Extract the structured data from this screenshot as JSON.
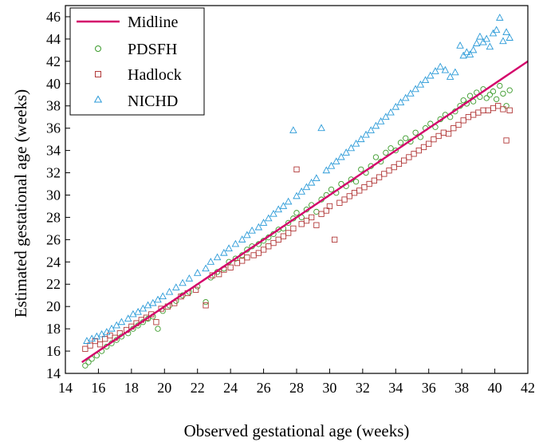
{
  "chart_data": {
    "type": "scatter",
    "title": "",
    "xlabel": "Observed gestational age (weeks)",
    "ylabel": "Estimated gestational age (weeks)",
    "xlim": [
      14,
      42
    ],
    "ylim": [
      14,
      47
    ],
    "xticks": [
      14,
      16,
      18,
      20,
      22,
      24,
      26,
      28,
      30,
      32,
      34,
      36,
      38,
      40,
      42
    ],
    "yticks": [
      14,
      16,
      18,
      20,
      22,
      24,
      26,
      28,
      30,
      32,
      34,
      36,
      38,
      40,
      42,
      44,
      46
    ],
    "grid": false,
    "legend_position": "top-left",
    "midline": {
      "name": "Midline",
      "color": "#d4006a",
      "x": [
        15,
        42
      ],
      "y": [
        15,
        42
      ]
    },
    "series": [
      {
        "name": "PDSFH",
        "marker": "circle",
        "color": "#3a9a2a",
        "points": [
          [
            15.2,
            14.7
          ],
          [
            15.4,
            15.0
          ],
          [
            15.6,
            15.3
          ],
          [
            15.9,
            15.6
          ],
          [
            16.2,
            16.0
          ],
          [
            16.5,
            16.4
          ],
          [
            16.8,
            16.7
          ],
          [
            17.1,
            17.0
          ],
          [
            17.4,
            17.3
          ],
          [
            17.8,
            17.6
          ],
          [
            18.1,
            18.0
          ],
          [
            18.4,
            18.3
          ],
          [
            18.7,
            18.6
          ],
          [
            19.0,
            18.9
          ],
          [
            19.3,
            19.1
          ],
          [
            19.6,
            18.0
          ],
          [
            19.9,
            19.6
          ],
          [
            20.3,
            20.1
          ],
          [
            20.7,
            20.5
          ],
          [
            21.1,
            21.0
          ],
          [
            21.5,
            21.3
          ],
          [
            22.0,
            21.8
          ],
          [
            22.5,
            20.4
          ],
          [
            22.8,
            22.6
          ],
          [
            23.2,
            23.1
          ],
          [
            23.6,
            23.4
          ],
          [
            23.9,
            24.0
          ],
          [
            24.3,
            24.3
          ],
          [
            24.7,
            24.6
          ],
          [
            25.0,
            25.1
          ],
          [
            25.3,
            25.4
          ],
          [
            25.7,
            25.6
          ],
          [
            26.0,
            25.9
          ],
          [
            26.3,
            26.2
          ],
          [
            26.6,
            26.5
          ],
          [
            26.9,
            26.9
          ],
          [
            27.2,
            27.0
          ],
          [
            27.5,
            27.5
          ],
          [
            27.8,
            27.9
          ],
          [
            28.0,
            28.4
          ],
          [
            28.3,
            28.0
          ],
          [
            28.6,
            28.7
          ],
          [
            28.9,
            29.1
          ],
          [
            29.2,
            28.5
          ],
          [
            29.5,
            29.6
          ],
          [
            29.8,
            30.0
          ],
          [
            30.1,
            30.5
          ],
          [
            30.4,
            30.2
          ],
          [
            30.7,
            31.0
          ],
          [
            31.0,
            30.8
          ],
          [
            31.3,
            31.4
          ],
          [
            31.6,
            31.2
          ],
          [
            31.9,
            32.3
          ],
          [
            32.2,
            32.0
          ],
          [
            32.5,
            32.6
          ],
          [
            32.8,
            33.4
          ],
          [
            33.1,
            33.0
          ],
          [
            33.4,
            33.8
          ],
          [
            33.7,
            34.2
          ],
          [
            34.0,
            34.0
          ],
          [
            34.3,
            34.7
          ],
          [
            34.6,
            35.1
          ],
          [
            34.9,
            34.8
          ],
          [
            35.2,
            35.6
          ],
          [
            35.5,
            35.2
          ],
          [
            35.8,
            36.0
          ],
          [
            36.1,
            36.4
          ],
          [
            36.4,
            36.1
          ],
          [
            36.7,
            36.8
          ],
          [
            37.0,
            37.2
          ],
          [
            37.3,
            37.0
          ],
          [
            37.6,
            37.5
          ],
          [
            37.9,
            38.0
          ],
          [
            38.1,
            38.5
          ],
          [
            38.3,
            38.2
          ],
          [
            38.5,
            38.9
          ],
          [
            38.7,
            38.4
          ],
          [
            38.9,
            39.2
          ],
          [
            39.1,
            38.8
          ],
          [
            39.3,
            39.5
          ],
          [
            39.5,
            38.7
          ],
          [
            39.7,
            39.0
          ],
          [
            39.9,
            39.3
          ],
          [
            40.1,
            38.6
          ],
          [
            40.3,
            39.8
          ],
          [
            40.5,
            39.1
          ],
          [
            40.7,
            38.0
          ],
          [
            40.9,
            39.4
          ]
        ]
      },
      {
        "name": "Hadlock",
        "marker": "square",
        "color": "#b23a3a",
        "points": [
          [
            15.2,
            16.2
          ],
          [
            15.5,
            16.5
          ],
          [
            15.8,
            16.9
          ],
          [
            16.1,
            16.6
          ],
          [
            16.4,
            17.1
          ],
          [
            16.7,
            17.4
          ],
          [
            17.0,
            17.2
          ],
          [
            17.3,
            17.6
          ],
          [
            17.7,
            17.9
          ],
          [
            18.0,
            18.2
          ],
          [
            18.3,
            18.5
          ],
          [
            18.6,
            18.8
          ],
          [
            18.9,
            19.0
          ],
          [
            19.2,
            19.3
          ],
          [
            19.5,
            18.6
          ],
          [
            19.8,
            19.8
          ],
          [
            20.2,
            20.0
          ],
          [
            20.6,
            20.3
          ],
          [
            21.0,
            20.9
          ],
          [
            21.4,
            21.2
          ],
          [
            21.9,
            21.5
          ],
          [
            22.5,
            20.1
          ],
          [
            22.9,
            22.8
          ],
          [
            23.3,
            22.9
          ],
          [
            23.6,
            23.3
          ],
          [
            24.0,
            23.5
          ],
          [
            24.4,
            23.9
          ],
          [
            24.7,
            24.1
          ],
          [
            25.0,
            24.4
          ],
          [
            25.4,
            24.6
          ],
          [
            25.7,
            24.8
          ],
          [
            26.0,
            25.1
          ],
          [
            26.3,
            25.4
          ],
          [
            26.6,
            25.7
          ],
          [
            26.9,
            26.0
          ],
          [
            27.2,
            26.3
          ],
          [
            27.5,
            26.6
          ],
          [
            27.8,
            27.0
          ],
          [
            28.0,
            32.3
          ],
          [
            28.3,
            27.4
          ],
          [
            28.6,
            27.7
          ],
          [
            28.9,
            28.0
          ],
          [
            29.2,
            27.3
          ],
          [
            29.5,
            28.3
          ],
          [
            29.8,
            28.6
          ],
          [
            30.0,
            29.0
          ],
          [
            30.3,
            26.0
          ],
          [
            30.6,
            29.3
          ],
          [
            30.9,
            29.6
          ],
          [
            31.2,
            29.9
          ],
          [
            31.5,
            30.2
          ],
          [
            31.8,
            30.4
          ],
          [
            32.1,
            30.7
          ],
          [
            32.4,
            31.0
          ],
          [
            32.7,
            31.3
          ],
          [
            33.0,
            31.6
          ],
          [
            33.3,
            31.9
          ],
          [
            33.6,
            32.2
          ],
          [
            33.9,
            32.5
          ],
          [
            34.2,
            32.8
          ],
          [
            34.5,
            33.1
          ],
          [
            34.8,
            33.4
          ],
          [
            35.1,
            33.7
          ],
          [
            35.4,
            34.0
          ],
          [
            35.7,
            34.3
          ],
          [
            36.0,
            34.6
          ],
          [
            36.3,
            35.0
          ],
          [
            36.6,
            35.3
          ],
          [
            36.9,
            35.6
          ],
          [
            37.2,
            35.5
          ],
          [
            37.5,
            36.0
          ],
          [
            37.8,
            36.3
          ],
          [
            38.1,
            36.7
          ],
          [
            38.4,
            37.0
          ],
          [
            38.7,
            37.2
          ],
          [
            39.0,
            37.4
          ],
          [
            39.3,
            37.6
          ],
          [
            39.6,
            37.6
          ],
          [
            39.9,
            37.8
          ],
          [
            40.2,
            38.0
          ],
          [
            40.5,
            37.7
          ],
          [
            40.7,
            34.9
          ],
          [
            40.9,
            37.6
          ]
        ]
      },
      {
        "name": "NICHD",
        "marker": "triangle",
        "color": "#2a9ad8",
        "points": [
          [
            15.3,
            16.9
          ],
          [
            15.6,
            17.1
          ],
          [
            15.9,
            17.3
          ],
          [
            16.2,
            17.5
          ],
          [
            16.5,
            17.7
          ],
          [
            16.8,
            18.0
          ],
          [
            17.1,
            18.3
          ],
          [
            17.4,
            18.6
          ],
          [
            17.8,
            18.9
          ],
          [
            18.1,
            19.3
          ],
          [
            18.4,
            19.5
          ],
          [
            18.7,
            19.8
          ],
          [
            19.0,
            20.1
          ],
          [
            19.3,
            20.3
          ],
          [
            19.6,
            20.6
          ],
          [
            19.9,
            20.9
          ],
          [
            20.3,
            21.3
          ],
          [
            20.7,
            21.7
          ],
          [
            21.1,
            22.1
          ],
          [
            21.5,
            22.5
          ],
          [
            22.0,
            23.0
          ],
          [
            22.5,
            23.4
          ],
          [
            22.8,
            24.0
          ],
          [
            23.2,
            24.4
          ],
          [
            23.6,
            24.8
          ],
          [
            23.9,
            25.2
          ],
          [
            24.3,
            25.6
          ],
          [
            24.7,
            26.0
          ],
          [
            25.0,
            26.4
          ],
          [
            25.3,
            26.8
          ],
          [
            25.7,
            27.1
          ],
          [
            26.0,
            27.5
          ],
          [
            26.3,
            27.9
          ],
          [
            26.6,
            28.3
          ],
          [
            26.9,
            28.7
          ],
          [
            27.2,
            29.0
          ],
          [
            27.5,
            29.4
          ],
          [
            27.8,
            35.8
          ],
          [
            28.0,
            29.9
          ],
          [
            28.3,
            30.3
          ],
          [
            28.6,
            30.7
          ],
          [
            28.9,
            31.1
          ],
          [
            29.2,
            31.5
          ],
          [
            29.5,
            36.0
          ],
          [
            29.8,
            32.2
          ],
          [
            30.1,
            32.6
          ],
          [
            30.4,
            33.0
          ],
          [
            30.7,
            33.4
          ],
          [
            31.0,
            33.8
          ],
          [
            31.3,
            34.2
          ],
          [
            31.6,
            34.6
          ],
          [
            31.9,
            35.0
          ],
          [
            32.2,
            35.4
          ],
          [
            32.5,
            35.8
          ],
          [
            32.8,
            36.2
          ],
          [
            33.1,
            36.6
          ],
          [
            33.4,
            37.0
          ],
          [
            33.7,
            37.4
          ],
          [
            34.0,
            37.9
          ],
          [
            34.3,
            38.3
          ],
          [
            34.6,
            38.7
          ],
          [
            34.9,
            39.1
          ],
          [
            35.2,
            39.5
          ],
          [
            35.5,
            39.9
          ],
          [
            35.8,
            40.3
          ],
          [
            36.1,
            40.7
          ],
          [
            36.4,
            41.1
          ],
          [
            36.7,
            41.5
          ],
          [
            37.0,
            41.2
          ],
          [
            37.3,
            40.6
          ],
          [
            37.6,
            41.0
          ],
          [
            37.9,
            43.4
          ],
          [
            38.1,
            42.5
          ],
          [
            38.3,
            42.8
          ],
          [
            38.5,
            42.6
          ],
          [
            38.7,
            43.0
          ],
          [
            38.9,
            43.6
          ],
          [
            39.1,
            44.2
          ],
          [
            39.3,
            43.7
          ],
          [
            39.5,
            44.0
          ],
          [
            39.7,
            43.3
          ],
          [
            39.9,
            44.5
          ],
          [
            40.1,
            44.8
          ],
          [
            40.3,
            45.9
          ],
          [
            40.5,
            43.8
          ],
          [
            40.7,
            44.6
          ],
          [
            40.9,
            44.1
          ]
        ]
      }
    ]
  }
}
